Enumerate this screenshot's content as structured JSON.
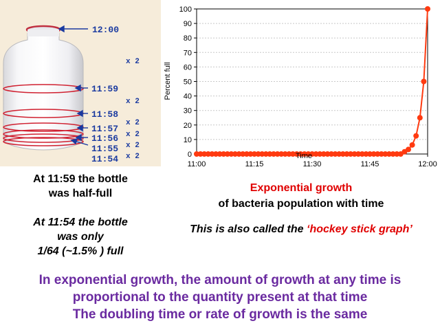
{
  "bottle": {
    "times": [
      "12:00",
      "11:59",
      "11:58",
      "11:57",
      "11:56",
      "11:55",
      "11:54"
    ],
    "multipliers": [
      "x 2",
      "x 2",
      "x 2",
      "x 2",
      "x 2",
      "x 2"
    ]
  },
  "left_caption": {
    "line1": "At 11:59 the bottle",
    "line2": "was half-full",
    "italic1": "At 11:54 the bottle",
    "italic2": "was only",
    "italic3": "1/64 (~1.5% ) full"
  },
  "chart_data": {
    "type": "scatter",
    "xlabel": "Time",
    "ylabel": "Percent full",
    "x_ticks": [
      "11:00",
      "11:15",
      "11:30",
      "11:45",
      "12:00"
    ],
    "x_range_minutes": [
      0,
      60
    ],
    "ylim": [
      0,
      100
    ],
    "y_ticks": [
      0,
      10,
      20,
      30,
      40,
      50,
      60,
      70,
      80,
      90,
      100
    ],
    "grid": true,
    "marker_color": "#ff3a10",
    "series": [
      {
        "x_minutes": [
          0,
          1,
          2,
          3,
          4,
          5,
          6,
          7,
          8,
          9,
          10,
          11,
          12,
          13,
          14,
          15,
          16,
          17,
          18,
          19,
          20,
          21,
          22,
          23,
          24,
          25,
          26,
          27,
          28,
          29,
          30,
          31,
          32,
          33,
          34,
          35,
          36,
          37,
          38,
          39,
          40,
          41,
          42,
          43,
          44,
          45,
          46,
          47,
          48,
          49,
          50,
          51,
          52,
          53,
          54,
          55,
          56,
          57,
          58,
          59,
          60
        ],
        "y_percent": [
          0,
          0,
          0,
          0,
          0,
          0,
          0,
          0,
          0,
          0,
          0,
          0,
          0,
          0,
          0,
          0,
          0,
          0,
          0,
          0,
          0,
          0,
          0,
          0,
          0,
          0,
          0,
          0,
          0,
          0,
          0,
          0,
          0,
          0,
          0,
          0,
          0,
          0,
          0,
          0,
          0,
          0,
          0,
          0,
          0,
          0,
          0,
          0,
          0,
          0,
          0,
          0,
          0,
          0,
          1.5625,
          3.125,
          6.25,
          12.5,
          25,
          50,
          100
        ]
      }
    ]
  },
  "chart_caption": {
    "title": "Exponential growth",
    "subtitle": "of bacteria population with time",
    "hockey_prefix": "This is also called the ",
    "hockey_quote": "‘hockey stick graph’"
  },
  "bottom": {
    "line1": "In exponential growth, the amount of growth at any time is",
    "line2": "proportional to the quantity present at that time",
    "line3": "The doubling time or rate of growth is the same"
  },
  "colors": {
    "panel_bg": "#f6ecda",
    "label_blue": "#1a3aa0",
    "ring_red": "#d02030",
    "title_red": "#e00000",
    "purple": "#6a2aa0"
  }
}
